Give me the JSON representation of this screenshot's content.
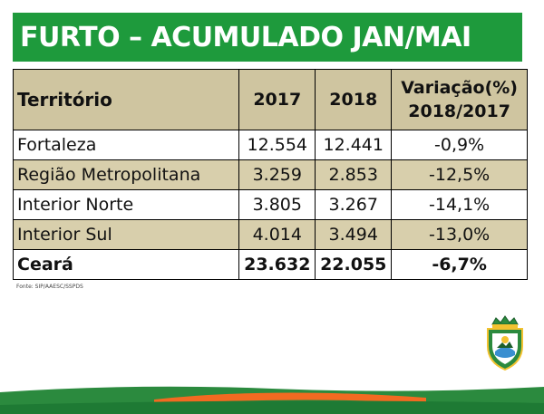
{
  "title": "FURTO – ACUMULADO JAN/MAI",
  "table": {
    "headers": {
      "territory": "Território",
      "y2017": "2017",
      "y2018": "2018",
      "variation_line1": "Variação(%)",
      "variation_line2": "2018/2017"
    },
    "rows": [
      {
        "territory": "Fortaleza",
        "y2017": "12.554",
        "y2018": "12.441",
        "variation": "-0,9%"
      },
      {
        "territory": "Região Metropolitana",
        "y2017": "3.259",
        "y2018": "2.853",
        "variation": "-12,5%"
      },
      {
        "territory": "Interior Norte",
        "y2017": "3.805",
        "y2018": "3.267",
        "variation": "-14,1%"
      },
      {
        "territory": "Interior Sul",
        "y2017": "4.014",
        "y2018": "3.494",
        "variation": "-13,0%"
      }
    ],
    "total": {
      "territory": "Ceará",
      "y2017": "23.632",
      "y2018": "22.055",
      "variation": "-6,7%"
    }
  },
  "source": "Fonte: SIP/AAESC/SSPDS",
  "colors": {
    "title_green": "#1e9a3c",
    "header_tan": "#cfc5a0",
    "row_tan": "#d8cfac",
    "footer_green": "#2b8a3e",
    "footer_orange": "#f26a21"
  }
}
